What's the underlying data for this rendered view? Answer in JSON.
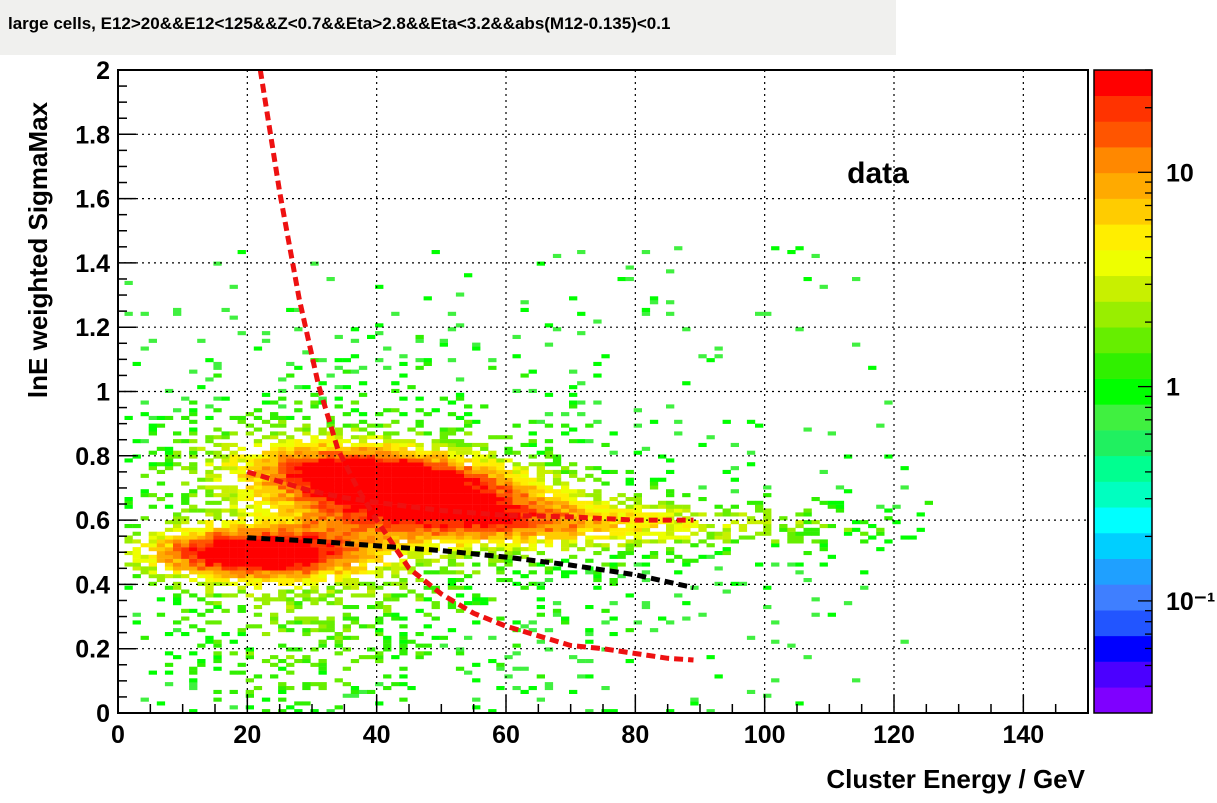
{
  "header": {
    "title": "large cells, E12>20&&E12<125&&Z<0.7&&Eta>2.8&&Eta<3.2&&abs(M12-0.135)<0.1"
  },
  "chart_data": {
    "type": "heatmap",
    "title": "large cells, E12>20&&E12<125&&Z<0.7&&Eta>2.8&&Eta<3.2&&abs(M12-0.135)<0.1",
    "xlabel": "Cluster Energy / GeV",
    "ylabel": "lnE weighted SigmaMax",
    "xlim": [
      0,
      150
    ],
    "ylim": [
      0,
      2
    ],
    "x_ticks": [
      "0",
      "20",
      "40",
      "60",
      "80",
      "100",
      "120",
      "140"
    ],
    "y_ticks": [
      "0",
      "0.2",
      "0.4",
      "0.6",
      "0.8",
      "1",
      "1.2",
      "1.4",
      "1.6",
      "1.8",
      "2"
    ],
    "grid": true,
    "annotation": "data",
    "colorbar": {
      "scale": "log",
      "range": [
        0.03,
        30
      ],
      "tick_labels": [
        "10",
        "1",
        "10⁻¹"
      ],
      "tick_values": [
        10,
        1,
        0.1
      ],
      "palette": [
        "#7f00ff",
        "#4b00ff",
        "#0000ff",
        "#2255ff",
        "#3f7fff",
        "#1fa0ff",
        "#00cfff",
        "#00ffff",
        "#00ffc0",
        "#00ff90",
        "#20f060",
        "#40f040",
        "#00ff00",
        "#30f000",
        "#66ee00",
        "#99ee00",
        "#c8f000",
        "#eeff00",
        "#ffee00",
        "#ffcc00",
        "#ffaa00",
        "#ff8800",
        "#ff5500",
        "#ff3300",
        "#ff0000"
      ]
    },
    "density_clusters": [
      {
        "x": [
          5,
          40
        ],
        "y": [
          0.35,
          0.65
        ],
        "level": "high"
      },
      {
        "x": [
          20,
          90
        ],
        "y": [
          0.5,
          0.8
        ],
        "level": "high"
      },
      {
        "x": [
          2,
          125
        ],
        "y": [
          0.0,
          1.3
        ],
        "level": "low"
      }
    ],
    "curves": [
      {
        "color": "#ee1111",
        "style": "dashed",
        "points": [
          [
            22,
            2.0
          ],
          [
            25,
            1.62
          ],
          [
            28,
            1.29
          ],
          [
            31,
            1.02
          ],
          [
            34,
            0.82
          ],
          [
            37,
            0.7
          ],
          [
            40,
            0.6
          ],
          [
            45,
            0.45
          ],
          [
            50,
            0.37
          ],
          [
            55,
            0.31
          ],
          [
            60,
            0.27
          ],
          [
            65,
            0.24
          ],
          [
            70,
            0.21
          ],
          [
            75,
            0.2
          ],
          [
            80,
            0.185
          ],
          [
            85,
            0.17
          ],
          [
            89,
            0.165
          ]
        ]
      },
      {
        "color": "#ee1111",
        "style": "dashed",
        "points": [
          [
            20,
            0.75
          ],
          [
            25,
            0.72
          ],
          [
            30,
            0.69
          ],
          [
            35,
            0.67
          ],
          [
            40,
            0.655
          ],
          [
            50,
            0.63
          ],
          [
            60,
            0.615
          ],
          [
            70,
            0.61
          ],
          [
            80,
            0.6
          ],
          [
            89,
            0.6
          ]
        ]
      },
      {
        "color": "#000000",
        "style": "dashed",
        "points": [
          [
            20,
            0.545
          ],
          [
            30,
            0.535
          ],
          [
            40,
            0.52
          ],
          [
            50,
            0.505
          ],
          [
            60,
            0.485
          ],
          [
            70,
            0.46
          ],
          [
            80,
            0.43
          ],
          [
            89,
            0.39
          ]
        ]
      }
    ]
  }
}
